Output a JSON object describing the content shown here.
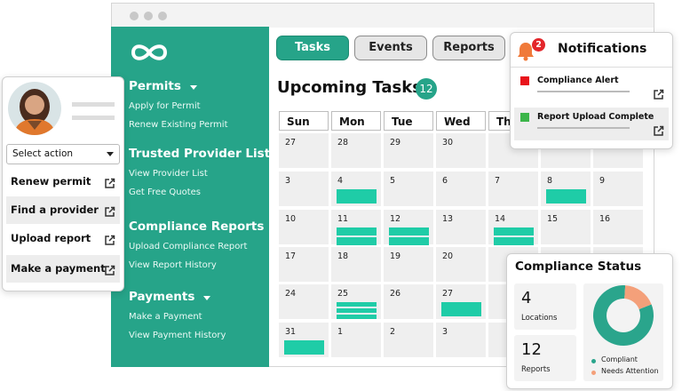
{
  "tabs": [
    {
      "label": "Tasks",
      "active": true
    },
    {
      "label": "Events",
      "active": false
    },
    {
      "label": "Reports",
      "active": false
    }
  ],
  "sidebar": [
    {
      "title": "Permits",
      "links": [
        "Apply for Permit",
        "Renew Existing Permit"
      ]
    },
    {
      "title": "Trusted Provider List",
      "links": [
        "View Provider List",
        "Get Free Quotes"
      ]
    },
    {
      "title": "Compliance Reports",
      "links": [
        "Upload Compliance Report",
        "View Report History"
      ]
    },
    {
      "title": "Payments",
      "links": [
        "Make a Payment",
        "View Payment History"
      ]
    }
  ],
  "upcoming": {
    "title": "Upcoming Tasks",
    "count": 12
  },
  "calendar": {
    "weekdays": [
      "Sun",
      "Mon",
      "Tue",
      "Wed",
      "Thu",
      null,
      null
    ],
    "weeks": [
      [
        {
          "day": 27
        },
        {
          "day": 28
        },
        {
          "day": 29
        },
        {
          "day": 30
        },
        {
          "day": null
        },
        {
          "day": null
        },
        {
          "day": null
        }
      ],
      [
        {
          "day": 3
        },
        {
          "day": 4,
          "tasks": 1
        },
        {
          "day": 5
        },
        {
          "day": 6
        },
        {
          "day": 7
        },
        {
          "day": 8,
          "tasks": 1
        },
        {
          "day": 9
        }
      ],
      [
        {
          "day": 10
        },
        {
          "day": 11,
          "tasks": 2
        },
        {
          "day": 12,
          "tasks": 2
        },
        {
          "day": 13
        },
        {
          "day": 14,
          "tasks": 2
        },
        {
          "day": 15
        },
        {
          "day": 16
        }
      ],
      [
        {
          "day": 17
        },
        {
          "day": 18
        },
        {
          "day": 19
        },
        {
          "day": 20
        },
        {
          "day": null
        },
        {
          "day": null
        },
        {
          "day": null
        }
      ],
      [
        {
          "day": 24
        },
        {
          "day": 25,
          "tasks": 3
        },
        {
          "day": 26
        },
        {
          "day": 27,
          "tasks": 1
        },
        {
          "day": null
        },
        {
          "day": null
        },
        {
          "day": null
        }
      ],
      [
        {
          "day": 31,
          "tasks": 1
        },
        {
          "day": 1
        },
        {
          "day": 2
        },
        {
          "day": 3
        },
        {
          "day": null
        },
        {
          "day": null
        },
        {
          "day": null
        }
      ]
    ]
  },
  "profile": {
    "select": "Select action",
    "actions": [
      "Renew permit",
      "Find a provider",
      "Upload report",
      "Make a payment"
    ]
  },
  "notifications": {
    "title": "Notifications",
    "badge": 2,
    "items": [
      {
        "label": "Compliance Alert",
        "color": "#e8141b"
      },
      {
        "label": "Report Upload Complete",
        "color": "#3cb54a"
      }
    ]
  },
  "compliance": {
    "title": "Compliance Status",
    "stats": [
      {
        "value": 4,
        "label": "Locations"
      },
      {
        "value": 12,
        "label": "Reports"
      }
    ],
    "breakdown": [
      {
        "name": "Compliant",
        "color": "#2aa58c",
        "value": 82
      },
      {
        "name": "Needs Attention",
        "color": "#f4a07a",
        "value": 18
      }
    ]
  }
}
